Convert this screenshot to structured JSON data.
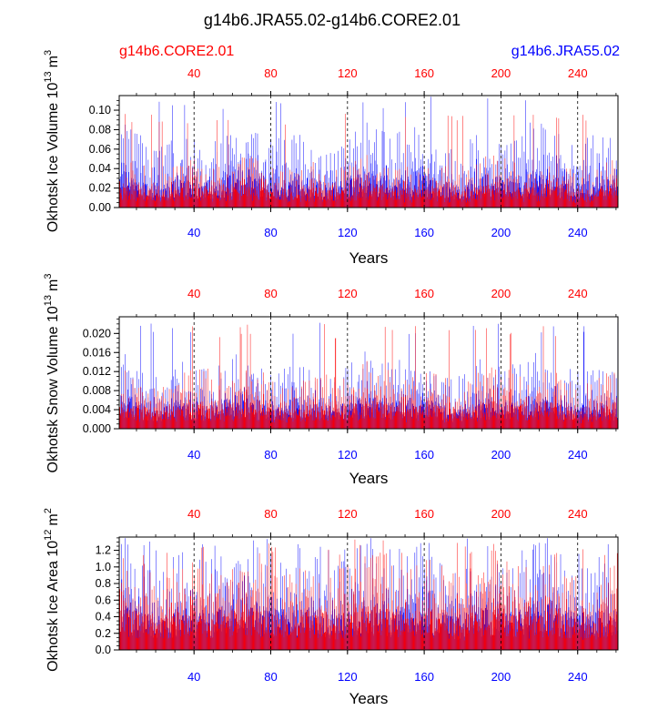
{
  "title": "g14b6.JRA55.02-g14b6.CORE2.01",
  "colors": {
    "core": "#ff0000",
    "jra": "#0000ff",
    "axis": "#000000",
    "grid": "#000000"
  },
  "chart_data": [
    {
      "type": "bar",
      "name": "ice-volume",
      "legend_left": "g14b6.CORE2.01",
      "legend_right": "g14b6.JRA55.02",
      "ylabel_main": "Okhotsk Ice Volume 10",
      "ylabel_exp": "13",
      "ylabel_unit": "m",
      "ylabel_unit_exp": "3",
      "xlabel": "Years",
      "xlim": [
        1,
        261
      ],
      "ylim": [
        0,
        0.115
      ],
      "yticks": [
        "0.00",
        "0.02",
        "0.04",
        "0.06",
        "0.08",
        "0.10"
      ],
      "xticks": [
        "40",
        "80",
        "120",
        "160",
        "200",
        "240"
      ],
      "series": [
        {
          "name": "g14b6.CORE2.01",
          "color": "#ff0000",
          "typical": 0.04,
          "peak": 0.1,
          "annual": true
        },
        {
          "name": "g14b6.JRA55.02",
          "color": "#0000ff",
          "typical": 0.065,
          "peak": 0.115,
          "annual": true
        }
      ]
    },
    {
      "type": "bar",
      "name": "snow-volume",
      "ylabel_main": "Okhotsk Snow Volume 10",
      "ylabel_exp": "13",
      "ylabel_unit": "m",
      "ylabel_unit_exp": "3",
      "xlabel": "Years",
      "xlim": [
        1,
        261
      ],
      "ylim": [
        0,
        0.0235
      ],
      "yticks": [
        "0.000",
        "0.004",
        "0.008",
        "0.012",
        "0.016",
        "0.020"
      ],
      "xticks": [
        "40",
        "80",
        "120",
        "160",
        "200",
        "240"
      ],
      "series": [
        {
          "name": "g14b6.CORE2.01",
          "color": "#ff0000",
          "typical": 0.01,
          "peak": 0.022
        },
        {
          "name": "g14b6.JRA55.02",
          "color": "#0000ff",
          "typical": 0.012,
          "peak": 0.023
        }
      ]
    },
    {
      "type": "bar",
      "name": "ice-area",
      "ylabel_main": "Okhotsk Ice Area 10",
      "ylabel_exp": "12",
      "ylabel_unit": "m",
      "ylabel_unit_exp": "2",
      "xlabel": "Years",
      "xlim": [
        1,
        261
      ],
      "ylim": [
        0,
        1.36
      ],
      "yticks": [
        "0.0",
        "0.2",
        "0.4",
        "0.6",
        "0.8",
        "1.0",
        "1.2"
      ],
      "xticks": [
        "40",
        "80",
        "120",
        "160",
        "200",
        "240"
      ],
      "series": [
        {
          "name": "g14b6.CORE2.01",
          "color": "#ff0000",
          "typical": 0.95,
          "peak": 1.33
        },
        {
          "name": "g14b6.JRA55.02",
          "color": "#0000ff",
          "typical": 1.05,
          "peak": 1.35
        }
      ]
    }
  ]
}
